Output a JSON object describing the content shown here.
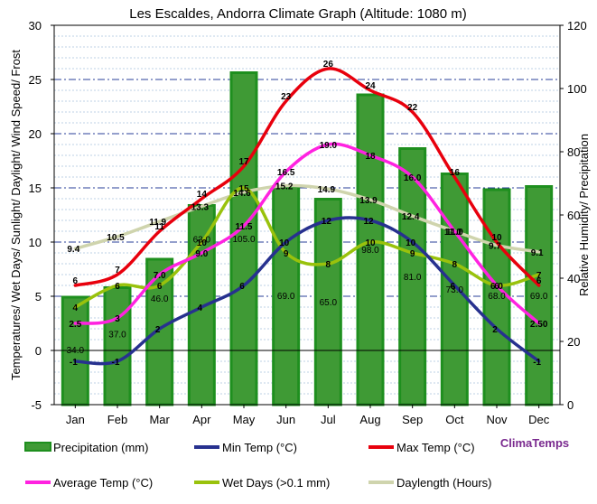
{
  "chart_data": {
    "type": "bar",
    "title": "Les Escaldes, Andorra Climate Graph (Altitude: 1080 m)",
    "ylabel_left": "Temperatures/ Wet Days/ Sunlight/ Daylight/ Wind Speed/ Frost",
    "ylabel_right": "Relative Humidity/ Precipitation",
    "ylim_left": [
      -5,
      30
    ],
    "ylim_right": [
      0,
      120
    ],
    "yticks_left": [
      "-5",
      "0",
      "5",
      "10",
      "15",
      "20",
      "25",
      "30"
    ],
    "yticks_right": [
      "0",
      "20",
      "40",
      "60",
      "80",
      "100",
      "120"
    ],
    "categories": [
      "Jan",
      "Feb",
      "Mar",
      "Apr",
      "May",
      "Jun",
      "Jul",
      "Aug",
      "Sep",
      "Oct",
      "Nov",
      "Dec"
    ],
    "brand": "ClimaTemps",
    "precipitation": {
      "name": "Precipitation (mm)",
      "axis": "right",
      "values": [
        34.0,
        37.0,
        46.0,
        63.0,
        105.0,
        69.0,
        65.0,
        98.0,
        81.0,
        73.0,
        68.0,
        69.0
      ],
      "labels": [
        "34.0",
        "37.0",
        "46.0",
        "63.0",
        "105.0",
        "69.0",
        "65.0",
        "98.0",
        "81.0",
        "73.0",
        "68.0",
        "69.0"
      ],
      "fill": "#3f9a35",
      "stroke": "#1e8f1e"
    },
    "series": [
      {
        "key": "min",
        "name": "Min Temp (°C)",
        "values": [
          -1,
          -1,
          2,
          4,
          6,
          10,
          12,
          12,
          10,
          6,
          2,
          -1
        ],
        "labels": [
          "-1",
          "-1",
          "2",
          "4",
          "6",
          "10",
          "12",
          "12",
          "10",
          "6",
          "2",
          "-1"
        ],
        "color": "#27318f"
      },
      {
        "key": "max",
        "name": "Max Temp (°C)",
        "values": [
          6,
          7,
          11,
          14,
          17,
          23,
          26,
          24,
          22,
          16,
          10,
          6
        ],
        "labels": [
          "6",
          "7",
          "11",
          "14",
          "17",
          "23",
          "26",
          "24",
          "22",
          "16",
          "10",
          "6"
        ],
        "color": "#e8000d"
      },
      {
        "key": "avg",
        "name": "Average Temp (°C)",
        "values": [
          2.5,
          3,
          7.0,
          9.0,
          11.5,
          16.5,
          19.0,
          18,
          16.0,
          11.0,
          6.0,
          2.5
        ],
        "labels": [
          "2.5",
          "3",
          "7.0",
          "9.0",
          "11.5",
          "16.5",
          "19.0",
          "18",
          "16.0",
          "11.0",
          "6.0",
          "2.50"
        ],
        "color": "#ff22e0"
      },
      {
        "key": "wet",
        "name": "Wet Days (>0.1 mm)",
        "values": [
          4,
          6,
          6,
          10,
          15,
          9,
          8,
          10,
          9,
          8,
          6,
          7
        ],
        "labels": [
          "4",
          "6",
          "6",
          "10",
          "15",
          "9",
          "8",
          "10",
          "9",
          "8",
          "6",
          "7"
        ],
        "color": "#99c20c"
      },
      {
        "key": "day",
        "name": "Daylength (Hours)",
        "values": [
          9.4,
          10.5,
          11.9,
          13.3,
          14.6,
          15.2,
          14.9,
          13.9,
          12.4,
          11.0,
          9.7,
          9.1
        ],
        "labels": [
          "9.4",
          "10.5",
          "11.9",
          "13.3",
          "14.6",
          "15.2",
          "14.9",
          "13.9",
          "12.4",
          "11.0",
          "9.7",
          "9.1"
        ],
        "color": "#cfd4ad"
      }
    ],
    "legend": [
      {
        "name": "Precipitation (mm)",
        "kind": "bar",
        "color": "#3f9a35"
      },
      {
        "name": "Min Temp (°C)",
        "kind": "line",
        "color": "#27318f"
      },
      {
        "name": "Max Temp (°C)",
        "kind": "line",
        "color": "#e8000d"
      },
      {
        "name": "Average Temp (°C)",
        "kind": "line",
        "color": "#ff22e0"
      },
      {
        "name": "Wet Days (>0.1 mm)",
        "kind": "line",
        "color": "#99c20c"
      },
      {
        "name": "Daylength (Hours)",
        "kind": "line",
        "color": "#cfd4ad"
      }
    ],
    "legend_position": "bottom"
  }
}
